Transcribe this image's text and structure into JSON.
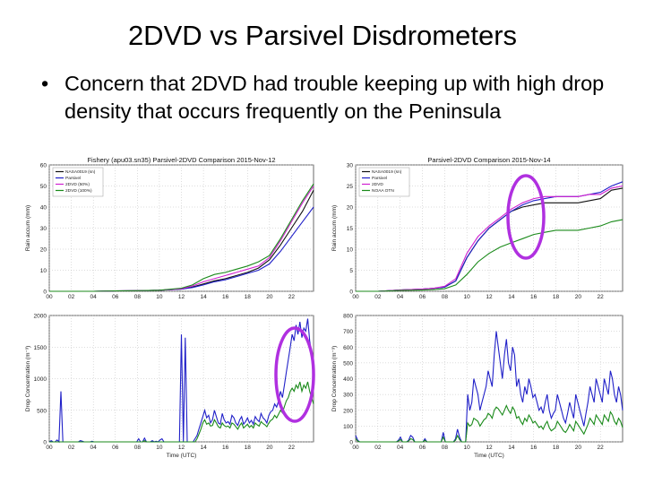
{
  "slide": {
    "title": "2DVD vs Parsivel Disdrometers",
    "bullet_symbol": "•",
    "bullet": "Concern that 2DVD had trouble keeping up with high drop density that occurs frequently on the Peninsula"
  },
  "colors": {
    "blue": "#2020c8",
    "green": "#1a8a1a",
    "magenta": "#b000b0",
    "black": "#111111",
    "highlight": "#b030e0"
  },
  "chart_data": [
    {
      "type": "line",
      "title": "Fishery (apu03.sn35) Parsivel-2DVD Comparison 2015-Nov-12",
      "ylabel": "Rain accum (mm)",
      "xlabel": "",
      "xlim": [
        0,
        24
      ],
      "ylim": [
        0,
        60
      ],
      "xticks": [
        "00",
        "02",
        "04",
        "06",
        "08",
        "10",
        "12",
        "14",
        "16",
        "18",
        "20",
        "22"
      ],
      "yticks": [
        "0",
        "10",
        "20",
        "30",
        "40",
        "50",
        "60"
      ],
      "grid": true,
      "legend_position": "top-left",
      "x": [
        0,
        2,
        4,
        6,
        8,
        10,
        12,
        13,
        14,
        15,
        16,
        17,
        18,
        19,
        20,
        21,
        22,
        23,
        24
      ],
      "series": [
        {
          "name": "NASA0019 (sn)",
          "color": "#111111",
          "values": [
            0,
            0,
            0,
            0.2,
            0.3,
            0.5,
            1,
            2,
            3.5,
            5,
            6,
            7.5,
            9,
            11,
            15,
            22,
            30,
            38,
            48
          ]
        },
        {
          "name": "Parsivel",
          "color": "#2020c8",
          "values": [
            0,
            0,
            0,
            0.2,
            0.3,
            0.5,
            1,
            1.8,
            3,
            4.5,
            5.5,
            7,
            8.5,
            10,
            13,
            19,
            26,
            33,
            40
          ]
        },
        {
          "name": "2DVD (50%)",
          "color": "#d020d0",
          "values": [
            0,
            0,
            0,
            0.2,
            0.3,
            0.5,
            1.2,
            2.5,
            4.5,
            6,
            7.5,
            9,
            10.5,
            12,
            16,
            24,
            33,
            42,
            50
          ]
        },
        {
          "name": "2DVD (100%)",
          "color": "#1a8a1a",
          "values": [
            0,
            0,
            0,
            0.2,
            0.3,
            0.5,
            1.5,
            3,
            6,
            8,
            9,
            10.5,
            12,
            14,
            17,
            25,
            34,
            43,
            51
          ]
        }
      ]
    },
    {
      "type": "line",
      "title": "Parsivel-2DVD Comparison 2015-Nov-14",
      "ylabel": "Rain accum (mm)",
      "xlabel": "",
      "xlim": [
        0,
        24
      ],
      "ylim": [
        0,
        30
      ],
      "xticks": [
        "00",
        "02",
        "04",
        "06",
        "08",
        "10",
        "12",
        "14",
        "16",
        "18",
        "20",
        "22"
      ],
      "yticks": [
        "0",
        "5",
        "10",
        "15",
        "20",
        "25",
        "30"
      ],
      "grid": true,
      "legend_position": "top-left",
      "x": [
        0,
        2,
        4,
        6,
        7,
        8,
        9,
        10,
        11,
        12,
        13,
        14,
        15,
        16,
        17,
        18,
        19,
        20,
        21,
        22,
        23,
        24
      ],
      "series": [
        {
          "name": "NASA0019 (sn)",
          "color": "#111111",
          "values": [
            0,
            0,
            0.3,
            0.5,
            0.7,
            1,
            2.5,
            8,
            12,
            15,
            17,
            19,
            20,
            20.5,
            21,
            21,
            21,
            21,
            21.5,
            22,
            24,
            24.5
          ]
        },
        {
          "name": "Parsivel",
          "color": "#2020c8",
          "values": [
            0,
            0,
            0.3,
            0.5,
            0.7,
            1,
            2.5,
            8,
            12,
            15,
            17,
            19,
            20.5,
            21.5,
            22,
            22.5,
            22.5,
            22.5,
            23,
            23.5,
            25,
            26
          ]
        },
        {
          "name": "2DVD",
          "color": "#d020d0",
          "values": [
            0,
            0,
            0.3,
            0.5,
            0.7,
            1.2,
            3,
            9,
            13,
            15.5,
            17.5,
            19.5,
            21,
            22,
            22.5,
            22.5,
            22.5,
            22.5,
            23,
            23,
            24.5,
            25
          ]
        },
        {
          "name": "NOAA OTN",
          "color": "#1a8a1a",
          "values": [
            0,
            0,
            0.2,
            0.3,
            0.4,
            0.6,
            1.5,
            4,
            7,
            9,
            10.5,
            11.5,
            12.5,
            13.5,
            14,
            14.5,
            14.5,
            14.5,
            15,
            15.5,
            16.5,
            17
          ]
        }
      ]
    },
    {
      "type": "line",
      "title": "",
      "ylabel": "Drop Concentration (m⁻³)",
      "xlabel": "Time (UTC)",
      "xlim": [
        0,
        24
      ],
      "ylim": [
        0,
        2000
      ],
      "xticks": [
        "00",
        "02",
        "04",
        "06",
        "08",
        "10",
        "12",
        "14",
        "16",
        "18",
        "20",
        "22"
      ],
      "yticks": [
        "0",
        "500",
        "1000",
        "1500",
        "2000"
      ],
      "grid": true,
      "series": [
        {
          "name": "",
          "color": "#2020c8",
          "values": [
            0,
            20,
            0,
            0,
            30,
            0,
            800,
            0,
            0,
            0,
            0,
            0,
            0,
            0,
            0,
            0,
            20,
            10,
            0,
            0,
            0,
            0,
            10,
            0,
            0,
            0,
            0,
            0,
            0,
            0,
            0,
            0,
            0,
            0,
            0,
            0,
            0,
            0,
            0,
            0,
            0,
            0,
            0,
            0,
            0,
            0,
            50,
            0,
            0,
            60,
            0,
            0,
            0,
            20,
            0,
            10,
            0,
            30,
            50,
            0,
            0,
            0,
            0,
            0,
            0,
            0,
            0,
            0,
            1700,
            0,
            1650,
            0,
            0,
            0,
            0,
            50,
            100,
            200,
            300,
            400,
            500,
            380,
            420,
            300,
            350,
            500,
            400,
            300,
            280,
            450,
            350,
            300,
            320,
            280,
            420,
            380,
            300,
            260,
            350,
            400,
            280,
            320,
            380,
            300,
            340,
            280,
            400,
            350,
            320,
            450,
            380,
            350,
            300,
            420,
            480,
            500,
            600,
            550,
            650,
            800,
            700,
            900,
            1100,
            1300,
            1500,
            1700,
            1600,
            1850,
            1700,
            1900,
            1650,
            1800,
            1750,
            1950,
            1600,
            1400,
            1200
          ]
        },
        {
          "name": "",
          "color": "#1a8a1a",
          "values": [
            0,
            0,
            0,
            0,
            0,
            0,
            0,
            0,
            0,
            0,
            0,
            0,
            0,
            0,
            0,
            0,
            0,
            0,
            0,
            0,
            0,
            0,
            0,
            0,
            0,
            0,
            0,
            0,
            0,
            0,
            0,
            0,
            0,
            0,
            0,
            0,
            0,
            0,
            0,
            0,
            0,
            0,
            0,
            0,
            0,
            0,
            0,
            0,
            0,
            20,
            0,
            0,
            0,
            0,
            0,
            0,
            0,
            0,
            0,
            0,
            0,
            0,
            0,
            0,
            0,
            0,
            0,
            0,
            0,
            0,
            0,
            0,
            0,
            0,
            0,
            0,
            50,
            120,
            200,
            300,
            350,
            280,
            300,
            250,
            260,
            350,
            300,
            240,
            220,
            300,
            260,
            240,
            250,
            220,
            300,
            280,
            240,
            200,
            260,
            300,
            220,
            250,
            280,
            230,
            260,
            220,
            300,
            270,
            250,
            320,
            290,
            270,
            240,
            300,
            340,
            360,
            420,
            380,
            440,
            500,
            460,
            560,
            650,
            700,
            800,
            850,
            800,
            900,
            850,
            950,
            800,
            900,
            850,
            950,
            800,
            700,
            600
          ]
        }
      ]
    },
    {
      "type": "line",
      "title": "",
      "ylabel": "Drop Concentration (m⁻³)",
      "xlabel": "Time (UTC)",
      "xlim": [
        0,
        24
      ],
      "ylim": [
        0,
        800
      ],
      "xticks": [
        "00",
        "02",
        "04",
        "06",
        "08",
        "10",
        "12",
        "14",
        "16",
        "18",
        "20",
        "22"
      ],
      "yticks": [
        "0",
        "100",
        "200",
        "300",
        "400",
        "500",
        "600",
        "700",
        "800"
      ],
      "grid": true,
      "series": [
        {
          "name": "",
          "color": "#2020c8",
          "values": [
            40,
            10,
            0,
            0,
            0,
            0,
            0,
            0,
            0,
            0,
            0,
            0,
            0,
            0,
            0,
            0,
            0,
            0,
            0,
            0,
            0,
            10,
            30,
            0,
            0,
            0,
            10,
            40,
            30,
            0,
            0,
            0,
            0,
            0,
            20,
            0,
            0,
            0,
            0,
            0,
            0,
            0,
            0,
            60,
            0,
            0,
            0,
            0,
            0,
            20,
            80,
            30,
            0,
            0,
            0,
            300,
            200,
            250,
            400,
            350,
            300,
            200,
            250,
            300,
            350,
            450,
            400,
            350,
            550,
            700,
            600,
            500,
            400,
            550,
            650,
            500,
            450,
            600,
            550,
            350,
            400,
            300,
            250,
            350,
            300,
            400,
            350,
            280,
            300,
            250,
            200,
            220,
            180,
            250,
            300,
            200,
            150,
            180,
            200,
            300,
            250,
            200,
            150,
            120,
            180,
            250,
            200,
            150,
            300,
            250,
            200,
            150,
            100,
            180,
            250,
            350,
            300,
            250,
            400,
            350,
            300,
            250,
            400,
            350,
            300,
            450,
            400,
            300,
            250,
            350,
            300,
            200
          ]
        },
        {
          "name": "",
          "color": "#1a8a1a",
          "values": [
            20,
            5,
            0,
            0,
            0,
            0,
            0,
            0,
            0,
            0,
            0,
            0,
            0,
            0,
            0,
            0,
            0,
            0,
            0,
            0,
            0,
            5,
            15,
            0,
            0,
            0,
            5,
            20,
            15,
            0,
            0,
            0,
            0,
            0,
            10,
            0,
            0,
            0,
            0,
            0,
            0,
            0,
            0,
            30,
            0,
            0,
            0,
            0,
            0,
            10,
            40,
            15,
            0,
            0,
            0,
            120,
            100,
            110,
            150,
            140,
            130,
            100,
            120,
            140,
            150,
            180,
            170,
            150,
            200,
            220,
            210,
            190,
            170,
            200,
            230,
            200,
            180,
            220,
            200,
            150,
            160,
            130,
            110,
            150,
            130,
            170,
            150,
            120,
            130,
            110,
            90,
            100,
            80,
            110,
            130,
            90,
            70,
            80,
            90,
            130,
            110,
            90,
            70,
            60,
            80,
            110,
            90,
            70,
            130,
            110,
            90,
            70,
            50,
            80,
            110,
            150,
            130,
            110,
            170,
            150,
            130,
            110,
            170,
            150,
            130,
            190,
            170,
            130,
            110,
            150,
            130,
            90
          ]
        }
      ]
    }
  ]
}
